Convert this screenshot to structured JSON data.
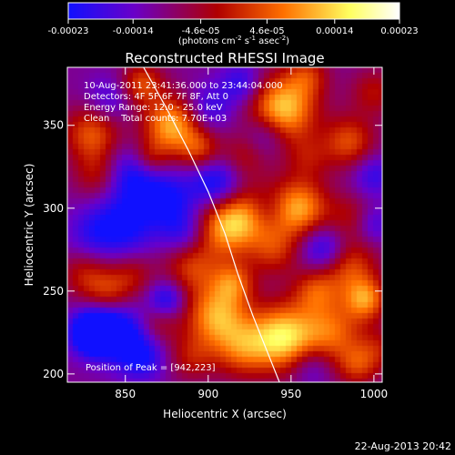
{
  "chart_data": {
    "type": "heatmap",
    "title": "Reconstructed RHESSI Image",
    "xlabel": "Heliocentric X (arcsec)",
    "ylabel": "Heliocentric Y (arcsec)",
    "xlim": [
      815,
      1005
    ],
    "ylim": [
      195,
      385
    ],
    "x_ticks": [
      850,
      900,
      950,
      1000
    ],
    "y_ticks": [
      200,
      250,
      300,
      350
    ],
    "colorbar": {
      "range": [
        -0.00023,
        0.00023
      ],
      "tick_values": [
        -0.00023,
        -0.00014,
        -4.6e-05,
        4.6e-05,
        0.00014,
        0.00023
      ],
      "tick_labels": [
        "-0.00023",
        "-0.00014",
        "-4.6e-05",
        "4.6e-05",
        "0.00014",
        "0.00023"
      ],
      "unit_parts": [
        "(photons cm",
        "-2",
        " s",
        "-1",
        " asec",
        "-2",
        ")"
      ],
      "colors": [
        "#1010ff",
        "#6a00c8",
        "#b00000",
        "#ff7000",
        "#ffff60",
        "#ffffff"
      ]
    },
    "annotations": [
      "10-Aug-2011 23:41:36.000 to 23:44:04.000",
      "Detectors: 4F 5F 6F 7F 8F, Att 0",
      "Energy Range: 12.0 - 25.0 keV",
      "Clean    Total counts: 7.70E+03"
    ],
    "peak_label": "Position of Peak = [942,223]",
    "peak_position": [
      942,
      223
    ],
    "limb_curve": [
      [
        861,
        385
      ],
      [
        875,
        360
      ],
      [
        888,
        335
      ],
      [
        900,
        310
      ],
      [
        910,
        285
      ],
      [
        918,
        260
      ],
      [
        927,
        235
      ],
      [
        935,
        215
      ],
      [
        943,
        195
      ]
    ],
    "blobs": [
      [
        830,
        345,
        12,
        0.6
      ],
      [
        833,
        320,
        10,
        0.35
      ],
      [
        840,
        365,
        10,
        -0.3
      ],
      [
        860,
        375,
        9,
        0.55
      ],
      [
        878,
        350,
        12,
        0.85
      ],
      [
        895,
        335,
        9,
        0.5
      ],
      [
        905,
        315,
        12,
        -0.6
      ],
      [
        875,
        305,
        11,
        -0.45
      ],
      [
        885,
        285,
        10,
        -0.4
      ],
      [
        890,
        265,
        12,
        0.5
      ],
      [
        912,
        290,
        13,
        0.9
      ],
      [
        930,
        300,
        12,
        0.5
      ],
      [
        905,
        235,
        13,
        0.8
      ],
      [
        920,
        215,
        12,
        0.55
      ],
      [
        945,
        222,
        14,
        1.0
      ],
      [
        975,
        225,
        13,
        0.6
      ],
      [
        990,
        205,
        9,
        0.45
      ],
      [
        945,
        360,
        14,
        0.95
      ],
      [
        960,
        330,
        10,
        0.3
      ],
      [
        985,
        340,
        11,
        0.55
      ],
      [
        1000,
        320,
        9,
        -0.35
      ],
      [
        955,
        300,
        12,
        0.8
      ],
      [
        940,
        275,
        11,
        0.45
      ],
      [
        935,
        300,
        9,
        -0.4
      ],
      [
        970,
        275,
        10,
        -0.5
      ],
      [
        985,
        265,
        12,
        0.55
      ],
      [
        995,
        245,
        9,
        0.7
      ],
      [
        965,
        250,
        10,
        0.5
      ],
      [
        920,
        330,
        10,
        0.35
      ],
      [
        935,
        345,
        9,
        -0.35
      ],
      [
        1000,
        370,
        10,
        0.35
      ],
      [
        1003,
        215,
        9,
        0.3
      ],
      [
        915,
        255,
        9,
        0.55
      ],
      [
        855,
        320,
        12,
        -0.5
      ],
      [
        850,
        290,
        13,
        -0.5
      ],
      [
        830,
        285,
        11,
        -0.3
      ],
      [
        825,
        260,
        10,
        0.35
      ],
      [
        840,
        250,
        10,
        0.45
      ],
      [
        855,
        260,
        9,
        0.3
      ],
      [
        845,
        225,
        12,
        -0.65
      ],
      [
        830,
        225,
        9,
        -0.95
      ],
      [
        860,
        210,
        10,
        -0.45
      ],
      [
        870,
        230,
        9,
        0.3
      ],
      [
        875,
        245,
        8,
        -0.5
      ],
      [
        890,
        210,
        10,
        0.35
      ],
      [
        962,
        205,
        9,
        -0.3
      ],
      [
        900,
        360,
        10,
        -0.35
      ],
      [
        920,
        375,
        9,
        -0.4
      ],
      [
        960,
        380,
        9,
        0.4
      ],
      [
        985,
        295,
        10,
        0.3
      ],
      [
        1000,
        290,
        8,
        -0.3
      ],
      [
        865,
        330,
        8,
        0.4
      ]
    ]
  },
  "footer": {
    "date_stamp": "22-Aug-2013 20:42"
  }
}
